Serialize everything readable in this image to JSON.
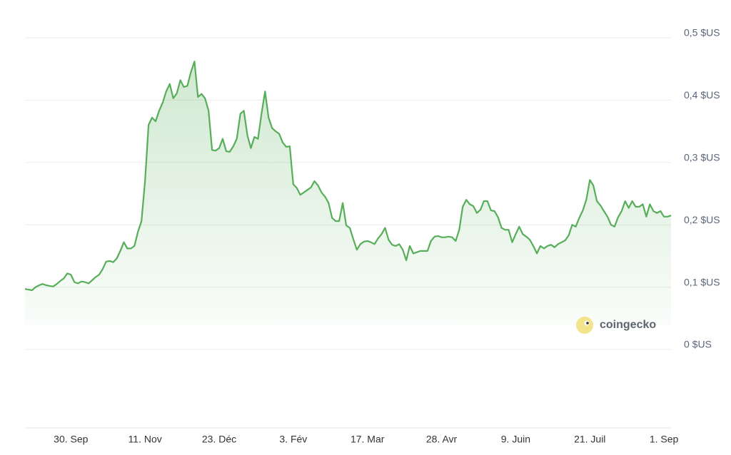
{
  "chart_data": {
    "type": "line",
    "watermark": "coingecko",
    "categories": [
      null,
      null,
      null,
      null,
      null,
      null,
      null,
      null,
      null,
      null,
      null,
      null,
      null,
      "30. Sep",
      null,
      null,
      null,
      null,
      null,
      null,
      null,
      null,
      null,
      null,
      null,
      null,
      null,
      null,
      null,
      null,
      null,
      null,
      null,
      null,
      "11. Nov",
      null,
      null,
      null,
      null,
      null,
      null,
      null,
      null,
      null,
      null,
      null,
      null,
      null,
      null,
      null,
      null,
      null,
      null,
      null,
      null,
      "23. Déc",
      null,
      null,
      null,
      null,
      null,
      null,
      null,
      null,
      null,
      null,
      null,
      null,
      null,
      null,
      null,
      null,
      null,
      null,
      null,
      null,
      "3. Fév",
      null,
      null,
      null,
      null,
      null,
      null,
      null,
      null,
      null,
      null,
      null,
      null,
      null,
      null,
      null,
      null,
      null,
      null,
      null,
      null,
      "17. Mar",
      null,
      null,
      null,
      null,
      null,
      null,
      null,
      null,
      null,
      null,
      null,
      null,
      null,
      null,
      null,
      null,
      null,
      null,
      null,
      null,
      "28. Avr",
      null,
      null,
      null,
      null,
      null,
      null,
      null,
      null,
      null,
      null,
      null,
      null,
      null,
      null,
      null,
      null,
      null,
      null,
      null,
      null,
      "9. Juin",
      null,
      null,
      null,
      null,
      null,
      null,
      null,
      null,
      null,
      null,
      null,
      null,
      null,
      null,
      null,
      null,
      null,
      null,
      null,
      null,
      "21. Juil",
      null,
      null,
      null,
      null,
      null,
      null,
      null,
      null,
      null,
      null,
      null,
      null,
      null,
      null,
      null,
      null,
      null,
      null,
      null,
      null,
      "1. Sep",
      null,
      null
    ],
    "series": [
      {
        "color": "#57ae59",
        "values": [
          0.097,
          0.096,
          0.095,
          0.1,
          0.103,
          0.105,
          0.103,
          0.102,
          0.101,
          0.105,
          0.11,
          0.114,
          0.122,
          0.12,
          0.108,
          0.106,
          0.109,
          0.108,
          0.106,
          0.111,
          0.116,
          0.12,
          0.129,
          0.141,
          0.142,
          0.14,
          0.146,
          0.158,
          0.172,
          0.162,
          0.162,
          0.166,
          0.189,
          0.206,
          0.269,
          0.36,
          0.372,
          0.366,
          0.383,
          0.396,
          0.414,
          0.426,
          0.403,
          0.411,
          0.432,
          0.421,
          0.423,
          0.445,
          0.462,
          0.405,
          0.41,
          0.403,
          0.383,
          0.32,
          0.319,
          0.323,
          0.338,
          0.318,
          0.317,
          0.326,
          0.338,
          0.378,
          0.383,
          0.343,
          0.323,
          0.341,
          0.338,
          0.378,
          0.414,
          0.372,
          0.355,
          0.35,
          0.346,
          0.332,
          0.325,
          0.326,
          0.265,
          0.259,
          0.248,
          0.252,
          0.256,
          0.26,
          0.27,
          0.263,
          0.252,
          0.245,
          0.235,
          0.211,
          0.206,
          0.206,
          0.235,
          0.199,
          0.195,
          0.177,
          0.16,
          0.169,
          0.173,
          0.174,
          0.172,
          0.169,
          0.178,
          0.185,
          0.195,
          0.176,
          0.168,
          0.166,
          0.169,
          0.16,
          0.143,
          0.166,
          0.154,
          0.156,
          0.158,
          0.158,
          0.158,
          0.174,
          0.181,
          0.182,
          0.18,
          0.18,
          0.181,
          0.18,
          0.174,
          0.192,
          0.229,
          0.24,
          0.233,
          0.23,
          0.219,
          0.224,
          0.238,
          0.238,
          0.223,
          0.222,
          0.212,
          0.195,
          0.192,
          0.192,
          0.172,
          0.185,
          0.197,
          0.185,
          0.181,
          0.176,
          0.166,
          0.154,
          0.166,
          0.162,
          0.166,
          0.168,
          0.164,
          0.169,
          0.172,
          0.175,
          0.183,
          0.2,
          0.197,
          0.211,
          0.223,
          0.24,
          0.272,
          0.263,
          0.238,
          0.231,
          0.222,
          0.213,
          0.2,
          0.197,
          0.212,
          0.222,
          0.238,
          0.227,
          0.238,
          0.229,
          0.229,
          0.233,
          0.213,
          0.233,
          0.222,
          0.219,
          0.222,
          0.213,
          0.213,
          0.215
        ]
      }
    ],
    "ylim": [
      0,
      0.5
    ],
    "yticks": [
      {
        "value": 0,
        "label": "0 $US"
      },
      {
        "value": 0.1,
        "label": "0,1 $US"
      },
      {
        "value": 0.2,
        "label": "0,2 $US"
      },
      {
        "value": 0.3,
        "label": "0,3 $US"
      },
      {
        "value": 0.4,
        "label": "0,4 $US"
      },
      {
        "value": 0.5,
        "label": "0,5 $US"
      }
    ],
    "grid": true
  }
}
